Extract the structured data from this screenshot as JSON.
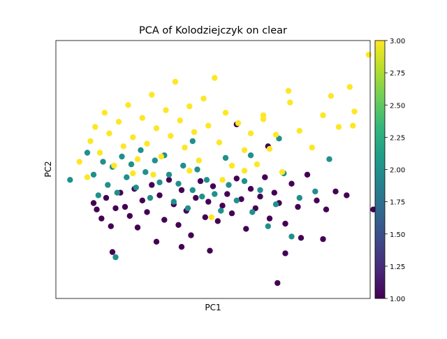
{
  "chart_data": {
    "type": "scatter",
    "title": "PCA of Kolodziejczyk on clear",
    "xlabel": "PC1",
    "ylabel": "PC2",
    "x_ticks_shown": false,
    "y_ticks_shown": false,
    "grid": false,
    "xlim": [
      -10,
      10
    ],
    "ylim": [
      -10,
      10
    ],
    "colorbar": {
      "colormap": "viridis",
      "min": 1.0,
      "max": 3.0,
      "ticks": [
        1.0,
        1.25,
        1.5,
        1.75,
        2.0,
        2.25,
        2.5,
        2.75,
        3.0
      ],
      "tick_labels": [
        "1.00",
        "1.25",
        "1.50",
        "1.75",
        "2.00",
        "2.25",
        "2.50",
        "2.75",
        "3.00"
      ],
      "stops": [
        "#440154",
        "#482878",
        "#3e4989",
        "#31688e",
        "#26828e",
        "#1f9e89",
        "#35b779",
        "#6ece58",
        "#b5de2b",
        "#fde725"
      ]
    },
    "series": [
      {
        "value": 1,
        "color": "#440154",
        "points": [
          [
            -7.6,
            -2.6
          ],
          [
            -7.4,
            -3.1
          ],
          [
            -7.1,
            -3.8
          ],
          [
            -6.8,
            -2.2
          ],
          [
            -6.5,
            -4.4
          ],
          [
            -6.2,
            -3.0
          ],
          [
            -5.9,
            -1.8
          ],
          [
            -5.6,
            -2.9
          ],
          [
            -5.3,
            -3.6
          ],
          [
            -5.0,
            -1.5
          ],
          [
            -4.8,
            -4.5
          ],
          [
            -4.5,
            -2.4
          ],
          [
            -4.2,
            -3.3
          ],
          [
            -3.9,
            -1.2
          ],
          [
            -3.6,
            -5.6
          ],
          [
            -3.4,
            -2.0
          ],
          [
            -3.1,
            -3.9
          ],
          [
            -2.8,
            -0.8
          ],
          [
            -2.5,
            -2.7
          ],
          [
            -2.2,
            -4.3
          ],
          [
            -2.0,
            -1.6
          ],
          [
            -1.7,
            -3.2
          ],
          [
            -1.4,
            -5.1
          ],
          [
            -1.1,
            -2.2
          ],
          [
            -0.8,
            -0.9
          ],
          [
            -0.5,
            -3.7
          ],
          [
            -0.3,
            -2.5
          ],
          [
            0.0,
            -1.3
          ],
          [
            0.3,
            -4.0
          ],
          [
            0.6,
            -2.8
          ],
          [
            0.9,
            -1.9
          ],
          [
            1.2,
            -3.4
          ],
          [
            1.5,
            -0.7
          ],
          [
            1.8,
            -2.3
          ],
          [
            2.1,
            -4.6
          ],
          [
            2.4,
            -1.5
          ],
          [
            2.7,
            -3.0
          ],
          [
            3.0,
            -2.1
          ],
          [
            3.3,
            -0.6
          ],
          [
            3.6,
            -3.8
          ],
          [
            3.9,
            -1.8
          ],
          [
            4.2,
            -2.6
          ],
          [
            4.6,
            -4.2
          ],
          [
            5.0,
            -1.1
          ],
          [
            5.4,
            -2.9
          ],
          [
            6.0,
            -0.4
          ],
          [
            6.6,
            -2.4
          ],
          [
            7.2,
            -3.1
          ],
          [
            7.8,
            -1.7
          ],
          [
            8.5,
            -2.0
          ],
          [
            10.2,
            -3.1
          ],
          [
            1.5,
            3.5
          ],
          [
            3.5,
            1.8
          ],
          [
            4.1,
            -8.8
          ],
          [
            4.6,
            -6.5
          ],
          [
            5.6,
            -5.3
          ],
          [
            7.0,
            -5.4
          ],
          [
            -6.4,
            -6.4
          ],
          [
            -2.0,
            -6.0
          ],
          [
            -0.2,
            -6.3
          ]
        ]
      },
      {
        "value": 2,
        "color": "#21908d",
        "points": [
          [
            -9.1,
            -0.8
          ],
          [
            -8.0,
            1.3
          ],
          [
            -7.6,
            -0.4
          ],
          [
            -7.3,
            -2.0
          ],
          [
            -7.0,
            0.6
          ],
          [
            -6.7,
            -1.2
          ],
          [
            -6.4,
            0.2
          ],
          [
            -6.1,
            -1.8
          ],
          [
            -5.8,
            1.0
          ],
          [
            -5.5,
            -0.6
          ],
          [
            -5.2,
            0.4
          ],
          [
            -4.9,
            -1.4
          ],
          [
            -4.6,
            1.5
          ],
          [
            -4.3,
            -0.2
          ],
          [
            -4.0,
            -2.2
          ],
          [
            -3.7,
            0.7
          ],
          [
            -3.4,
            -1.0
          ],
          [
            -3.1,
            1.1
          ],
          [
            -2.8,
            -0.4
          ],
          [
            -2.5,
            -2.5
          ],
          [
            -2.2,
            -1.1
          ],
          [
            -1.9,
            0.3
          ],
          [
            -1.6,
            -3.0
          ],
          [
            -1.3,
            -1.6
          ],
          [
            -1.0,
            0.0
          ],
          [
            -0.7,
            -2.1
          ],
          [
            -0.4,
            -0.8
          ],
          [
            0.1,
            -1.9
          ],
          [
            0.5,
            -3.2
          ],
          [
            1.0,
            -1.2
          ],
          [
            1.5,
            -2.4
          ],
          [
            2.0,
            -0.9
          ],
          [
            2.5,
            -3.3
          ],
          [
            3.0,
            -1.6
          ],
          [
            3.5,
            -4.4
          ],
          [
            4.0,
            -2.7
          ],
          [
            4.5,
            -0.3
          ],
          [
            5.0,
            -5.2
          ],
          [
            5.5,
            -2.2
          ],
          [
            6.5,
            -1.7
          ],
          [
            7.4,
            0.8
          ],
          [
            -1.3,
            2.2
          ],
          [
            0.8,
            0.9
          ],
          [
            2.4,
            1.1
          ],
          [
            4.2,
            2.4
          ],
          [
            -6.2,
            -6.8
          ]
        ]
      },
      {
        "value": 3,
        "color": "#fde725",
        "points": [
          [
            -8.5,
            0.6
          ],
          [
            -8.0,
            -0.6
          ],
          [
            -7.8,
            2.2
          ],
          [
            -7.5,
            3.3
          ],
          [
            -7.2,
            1.3
          ],
          [
            -6.9,
            4.4
          ],
          [
            -6.6,
            2.8
          ],
          [
            -6.3,
            0.3
          ],
          [
            -6.0,
            3.7
          ],
          [
            -5.7,
            1.8
          ],
          [
            -5.4,
            5.0
          ],
          [
            -5.1,
            2.5
          ],
          [
            -4.8,
            0.8
          ],
          [
            -4.5,
            4.0
          ],
          [
            -4.2,
            2.0
          ],
          [
            -3.9,
            5.8
          ],
          [
            -3.6,
            3.2
          ],
          [
            -3.3,
            1.0
          ],
          [
            -3.0,
            4.6
          ],
          [
            -2.7,
            2.6
          ],
          [
            -2.4,
            6.8
          ],
          [
            -2.1,
            3.8
          ],
          [
            -1.8,
            1.7
          ],
          [
            -1.5,
            4.9
          ],
          [
            -1.2,
            2.9
          ],
          [
            -0.9,
            0.7
          ],
          [
            -0.6,
            5.5
          ],
          [
            -0.3,
            3.4
          ],
          [
            0.1,
            7.1
          ],
          [
            0.4,
            2.1
          ],
          [
            0.8,
            4.4
          ],
          [
            1.2,
            0.3
          ],
          [
            1.6,
            3.6
          ],
          [
            2.0,
            1.5
          ],
          [
            2.4,
            2.8
          ],
          [
            2.8,
            0.4
          ],
          [
            3.2,
            3.9
          ],
          [
            3.6,
            1.6
          ],
          [
            4.0,
            2.7
          ],
          [
            4.4,
            -0.2
          ],
          [
            4.9,
            5.2
          ],
          [
            5.5,
            3.0
          ],
          [
            6.3,
            1.7
          ],
          [
            7.0,
            4.2
          ],
          [
            7.5,
            5.7
          ],
          [
            8.0,
            3.3
          ],
          [
            8.7,
            6.4
          ],
          [
            8.9,
            3.4
          ],
          [
            9.0,
            4.5
          ],
          [
            9.9,
            8.9
          ],
          [
            -0.1,
            -3.7
          ],
          [
            -5.1,
            -0.3
          ],
          [
            -3.8,
            -0.4
          ],
          [
            -1.5,
            -0.1
          ],
          [
            0.6,
            -0.8
          ],
          [
            2.0,
            -0.1
          ],
          [
            3.2,
            4.2
          ],
          [
            4.8,
            6.1
          ]
        ]
      }
    ]
  }
}
